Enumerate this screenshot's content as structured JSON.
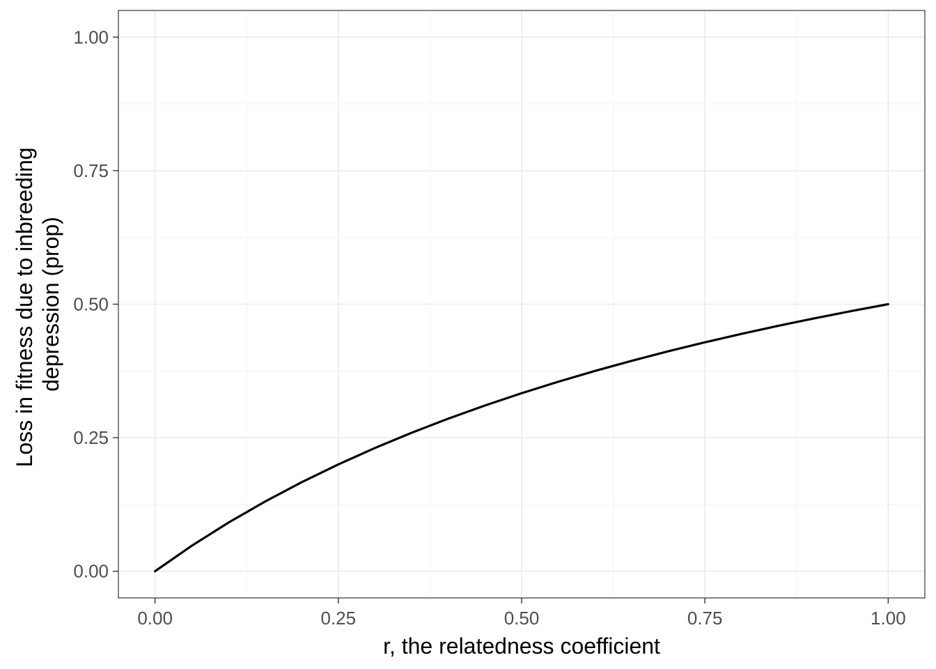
{
  "chart_data": {
    "type": "line",
    "xlabel": "r, the relatedness coefficient",
    "ylabel": [
      "Loss in fitness due to inbreeding",
      "depression (prop)"
    ],
    "xlim": [
      -0.05,
      1.05
    ],
    "ylim": [
      -0.05,
      1.05
    ],
    "x_ticks": [
      0,
      0.25,
      0.5,
      0.75,
      1
    ],
    "x_tick_labels": [
      "0.00",
      "0.25",
      "0.50",
      "0.75",
      "1.00"
    ],
    "y_ticks": [
      0,
      0.25,
      0.5,
      0.75,
      1
    ],
    "y_tick_labels": [
      "0.00",
      "0.25",
      "0.50",
      "0.75",
      "1.00"
    ],
    "grid": true,
    "series": [
      {
        "color": "#000000",
        "x": [
          0,
          0.05,
          0.1,
          0.15,
          0.2,
          0.25,
          0.3,
          0.35,
          0.4,
          0.45,
          0.5,
          0.55,
          0.6,
          0.65,
          0.7,
          0.75,
          0.8,
          0.85,
          0.9,
          0.95,
          1
        ],
        "y": [
          0,
          0.0476,
          0.0909,
          0.1304,
          0.1667,
          0.2,
          0.2308,
          0.2593,
          0.2857,
          0.3103,
          0.3333,
          0.3548,
          0.375,
          0.3939,
          0.4118,
          0.4286,
          0.4444,
          0.4595,
          0.4737,
          0.4872,
          0.5
        ]
      }
    ]
  }
}
